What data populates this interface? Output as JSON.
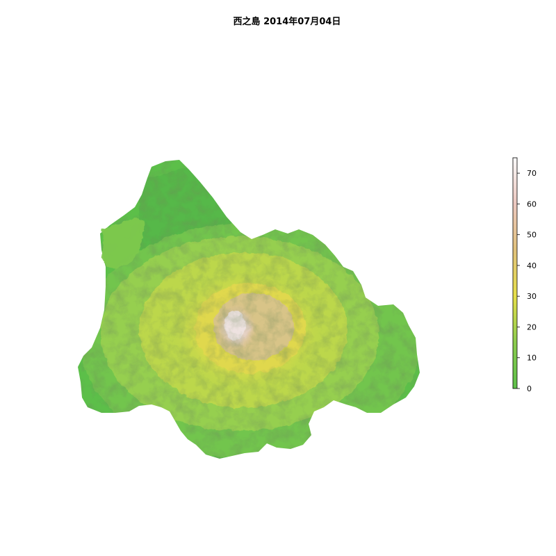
{
  "title": "西之島 2014年07月04日",
  "legend": {
    "min": 0,
    "max": 75,
    "ticks": [
      {
        "value": 0,
        "label": "0"
      },
      {
        "value": 10,
        "label": "10"
      },
      {
        "value": 20,
        "label": "20"
      },
      {
        "value": 30,
        "label": "30"
      },
      {
        "value": 40,
        "label": "40"
      },
      {
        "value": 50,
        "label": "50"
      },
      {
        "value": 60,
        "label": "60"
      },
      {
        "value": 70,
        "label": "70"
      }
    ],
    "colors": [
      "#5cbf4a",
      "#a0d050",
      "#e8e048",
      "#e0c078",
      "#e8c8c0",
      "#f8f8f8"
    ]
  },
  "map": {
    "peak_elevation": 72,
    "colors": {
      "low": "#5cbf4a",
      "mid_low": "#7fca4e",
      "mid": "#c8d84a",
      "high": "#e8de48",
      "upper": "#dcc48a",
      "summit": "#eedcd6"
    }
  }
}
